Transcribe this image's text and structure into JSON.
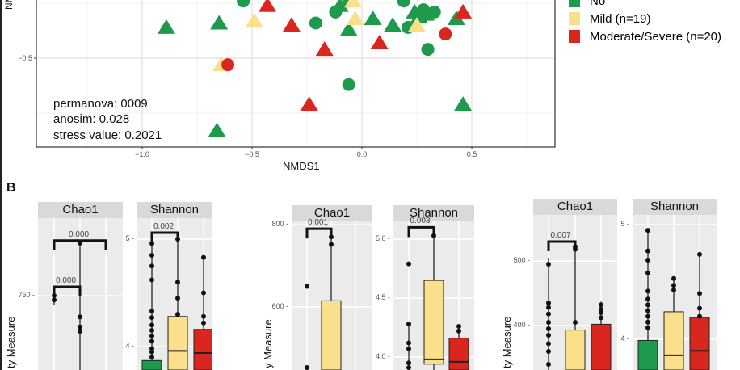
{
  "panel_b_label": "B",
  "colors": {
    "No": "#1d9a4b",
    "Mild": "#fbe08c",
    "Moderate/Severe": "#d9261f"
  },
  "chart_data": [
    {
      "type": "scatter",
      "xlabel": "NMDS1",
      "ylabel": "NM",
      "x_ticks": [
        {
          "label": "−1.0",
          "value": -1.0
        },
        {
          "label": "−0.5",
          "value": -0.5
        },
        {
          "label": "0.0",
          "value": 0.0
        },
        {
          "label": "0.5",
          "value": 0.5
        }
      ],
      "y_ticks": [
        {
          "label": "−0.5",
          "value": -0.5
        }
      ],
      "grid": true,
      "legend": {
        "placement": "right",
        "entries": [
          {
            "label": "No",
            "group": "No"
          },
          {
            "label": "Mild (n=19)",
            "group": "Mild"
          },
          {
            "label": "Moderate/Severe (n=20)",
            "group": "Moderate/Severe"
          }
        ]
      },
      "annotations": [
        "permanova: 0009",
        "anosim: 0.028",
        "stress value: 0.2021"
      ],
      "series": [
        {
          "group": "No",
          "shape": "triangle",
          "points": [
            [
              -0.89,
              -0.36
            ],
            [
              -0.65,
              -0.34
            ],
            [
              -0.06,
              -0.37
            ],
            [
              0.14,
              -0.35
            ],
            [
              0.26,
              -0.31
            ],
            [
              0.24,
              -0.29
            ],
            [
              0.43,
              -0.32
            ],
            [
              0.46,
              -0.71
            ],
            [
              -0.66,
              -0.83
            ],
            [
              0.05,
              -0.32
            ],
            [
              -0.1,
              -0.26
            ],
            [
              0.29,
              -0.3
            ]
          ]
        },
        {
          "group": "No",
          "shape": "circle",
          "points": [
            [
              -0.54,
              -0.24
            ],
            [
              -0.12,
              -0.29
            ],
            [
              -0.06,
              -0.24
            ],
            [
              0.21,
              -0.36
            ],
            [
              0.3,
              -0.46
            ],
            [
              -0.06,
              -0.62
            ],
            [
              0.33,
              -0.29
            ],
            [
              0.28,
              -0.28
            ],
            [
              0.19,
              -0.24
            ],
            [
              -0.21,
              -0.34
            ]
          ]
        },
        {
          "group": "Mild",
          "shape": "triangle",
          "points": [
            [
              -0.49,
              -0.33
            ],
            [
              -0.03,
              -0.32
            ],
            [
              -0.64,
              -0.53
            ],
            [
              -0.04,
              -0.24
            ],
            [
              0.25,
              -0.35
            ]
          ]
        },
        {
          "group": "Moderate/Severe",
          "shape": "triangle",
          "points": [
            [
              -0.43,
              -0.26
            ],
            [
              -0.32,
              -0.35
            ],
            [
              -0.17,
              -0.46
            ],
            [
              0.08,
              -0.43
            ],
            [
              -0.24,
              -0.71
            ],
            [
              0.46,
              -0.29
            ]
          ]
        },
        {
          "group": "Moderate/Severe",
          "shape": "circle",
          "points": [
            [
              -0.61,
              -0.53
            ],
            [
              0.38,
              -0.39
            ]
          ]
        }
      ]
    },
    {
      "type": "box",
      "facet": "Chao1",
      "ylabel": "ty Measure",
      "ticks": [
        {
          "label": "750",
          "value": 750
        }
      ],
      "groups": [
        {
          "group": "No",
          "whisker": [
            725,
            760
          ],
          "points": [
            750,
            738
          ]
        },
        {
          "group": "Yellow",
          "color_group": "Mild",
          "whisker": [
            500,
            905
          ],
          "points": [
            898,
            690,
            662,
            650
          ]
        },
        {
          "group": "Moderate/Severe",
          "whisker": null,
          "points": []
        }
      ],
      "brackets": [
        {
          "from": 0,
          "to": 2,
          "value": 905,
          "label": "0.000"
        },
        {
          "from": 0,
          "to": 1,
          "value": 775,
          "label": "0.000"
        }
      ]
    },
    {
      "type": "box",
      "facet": "Shannon",
      "ticks": [
        {
          "label": "5",
          "value": 5
        },
        {
          "label": "4",
          "value": 4
        }
      ],
      "groups": [
        {
          "group": "No",
          "q3": 3.87,
          "median": 3.5,
          "q1": 3.3,
          "whisker": [
            3.0,
            4.96
          ],
          "points": [
            4.96,
            4.85,
            4.75,
            4.62,
            4.33,
            4.27,
            4.2,
            4.15,
            4.1,
            4.05,
            3.98,
            3.95,
            3.9
          ]
        },
        {
          "group": "Mild",
          "q3": 4.28,
          "median": 3.96,
          "q1": 3.5,
          "whisker": [
            3.0,
            5.0
          ],
          "points": [
            5.0,
            4.6,
            4.45,
            4.3
          ]
        },
        {
          "group": "Moderate/Severe",
          "q3": 4.16,
          "median": 3.94,
          "q1": 3.5,
          "whisker": [
            3.0,
            4.83
          ],
          "points": [
            4.83,
            4.5,
            4.28,
            4.22
          ]
        }
      ],
      "brackets": [
        {
          "from": 0,
          "to": 1,
          "value": 5.06,
          "label": "0.002"
        }
      ]
    },
    {
      "type": "box",
      "facet": "Chao1",
      "ylabel": "y Measure",
      "ticks": [
        {
          "label": "800",
          "value": 800
        },
        {
          "label": "600",
          "value": 600
        }
      ],
      "groups": [
        {
          "group": "No",
          "whisker": [
            440,
            450
          ],
          "points": [
            650,
            446
          ]
        },
        {
          "group": "Mild",
          "q3": 615,
          "median": 300,
          "q1": 250,
          "whisker": [
            200,
            775
          ],
          "points": [
            770,
            752
          ]
        },
        {
          "group": "Moderate/Severe",
          "whisker": null,
          "points": []
        }
      ],
      "brackets": [
        {
          "from": 0,
          "to": 1,
          "value": 790,
          "label": "0.001"
        }
      ]
    },
    {
      "type": "box",
      "facet": "Shannon",
      "ticks": [
        {
          "label": "5.0",
          "value": 5.0
        },
        {
          "label": "4.5",
          "value": 4.5
        },
        {
          "label": "4.0",
          "value": 4.0
        }
      ],
      "groups": [
        {
          "group": "No",
          "whisker": [
            3.5,
            4.28
          ],
          "points": [
            4.79,
            4.28,
            4.12,
            4.07,
            3.95,
            3.9
          ]
        },
        {
          "group": "Mild",
          "q3": 4.65,
          "median": 3.98,
          "q1": 3.94,
          "whisker": [
            3.5,
            5.03
          ],
          "points": [
            5.03
          ]
        },
        {
          "group": "Moderate/Severe",
          "q3": 4.16,
          "median": 3.96,
          "q1": 3.7,
          "whisker": [
            3.5,
            4.26
          ],
          "points": [
            4.26,
            4.22
          ]
        }
      ],
      "brackets": [
        {
          "from": 0,
          "to": 1,
          "value": 5.1,
          "label": "0.003"
        }
      ]
    },
    {
      "type": "box",
      "facet": "Chao1",
      "ylabel": "ty Measure",
      "ticks": [
        {
          "label": "500",
          "value": 500
        },
        {
          "label": "400",
          "value": 400
        }
      ],
      "groups": [
        {
          "group": "No",
          "whisker": [
            300,
            505
          ],
          "points": [
            495,
            435,
            428,
            418,
            405,
            395,
            385,
            372,
            360,
            340
          ]
        },
        {
          "group": "Mild",
          "q3": 393,
          "median": 300,
          "q1": 280,
          "whisker": [
            250,
            525
          ],
          "points": [
            522,
            518,
            405
          ]
        },
        {
          "group": "Moderate/Severe",
          "q3": 402,
          "median": 300,
          "q1": 280,
          "whisker": [
            250,
            437
          ],
          "points": [
            432,
            425,
            420,
            412
          ]
        }
      ],
      "brackets": [
        {
          "from": 0,
          "to": 1,
          "value": 530,
          "label": "0.007"
        }
      ]
    },
    {
      "type": "box",
      "facet": "Shannon",
      "ticks": [
        {
          "label": "5",
          "value": 5
        },
        {
          "label": "4",
          "value": 4
        }
      ],
      "groups": [
        {
          "group": "No",
          "q3": 3.99,
          "median": 3.6,
          "q1": 3.4,
          "whisker": [
            3.0,
            4.95
          ],
          "points": [
            4.95,
            4.77,
            4.69,
            4.58,
            4.42,
            4.35,
            4.3,
            4.25,
            4.2,
            4.15,
            4.1
          ]
        },
        {
          "group": "Mild",
          "q3": 4.24,
          "median": 3.86,
          "q1": 3.5,
          "whisker": [
            3.0,
            4.53
          ],
          "points": [
            4.53,
            4.47,
            4.43
          ]
        },
        {
          "group": "Moderate/Severe",
          "q3": 4.19,
          "median": 3.9,
          "q1": 3.5,
          "whisker": [
            3.0,
            4.74
          ],
          "points": [
            4.74,
            4.4,
            4.27,
            4.2
          ]
        }
      ],
      "brackets": []
    }
  ]
}
